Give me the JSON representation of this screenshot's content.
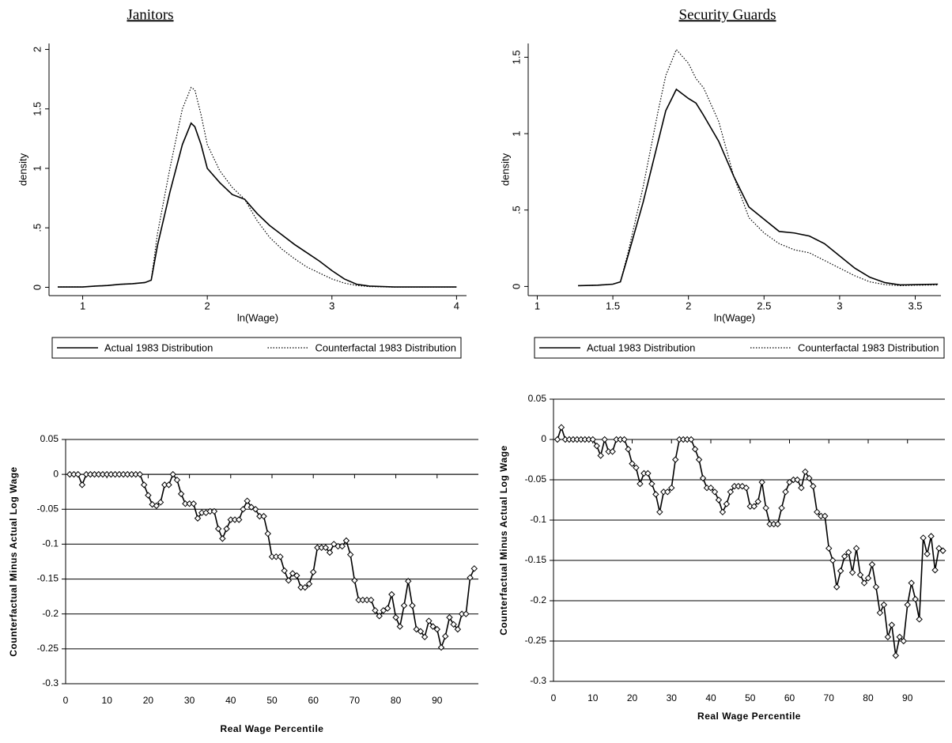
{
  "chart_data": [
    {
      "type": "line",
      "title": "Janitors",
      "xlabel": "ln(Wage)",
      "ylabel": "density",
      "x": [
        0.8,
        1.0,
        1.1,
        1.2,
        1.3,
        1.4,
        1.5,
        1.55,
        1.6,
        1.7,
        1.8,
        1.87,
        1.9,
        1.95,
        2.0,
        2.1,
        2.2,
        2.3,
        2.4,
        2.5,
        2.6,
        2.7,
        2.8,
        2.9,
        3.0,
        3.1,
        3.2,
        3.3,
        3.5,
        4.0
      ],
      "series": [
        {
          "name": "Actual 1983 Distribution",
          "color": "#000000",
          "style": "solid",
          "values": [
            0.003,
            0.003,
            0.01,
            0.015,
            0.025,
            0.03,
            0.04,
            0.06,
            0.35,
            0.8,
            1.2,
            1.38,
            1.35,
            1.2,
            1.0,
            0.88,
            0.78,
            0.74,
            0.62,
            0.52,
            0.44,
            0.36,
            0.29,
            0.22,
            0.14,
            0.07,
            0.025,
            0.01,
            0.003,
            0.003
          ]
        },
        {
          "name": "Counterfactal 1983 Distribution",
          "color": "#000000",
          "style": "dotted",
          "values": [
            0.003,
            0.003,
            0.01,
            0.015,
            0.025,
            0.03,
            0.04,
            0.06,
            0.45,
            1.0,
            1.5,
            1.68,
            1.66,
            1.45,
            1.2,
            0.98,
            0.84,
            0.74,
            0.56,
            0.42,
            0.32,
            0.24,
            0.17,
            0.12,
            0.07,
            0.035,
            0.015,
            0.006,
            0.002,
            0.002
          ]
        }
      ],
      "xlim": [
        0.73,
        4.08
      ],
      "ylim": [
        -0.07,
        2.05
      ],
      "xticks": [
        1,
        2,
        3,
        4
      ],
      "yticks": [
        0,
        {
          "value": 0.5,
          "label": ".5"
        },
        1,
        1.5,
        2
      ],
      "grid": false,
      "legend": "bottom"
    },
    {
      "type": "line",
      "title": "Security Guards",
      "xlabel": "ln(Wage)",
      "ylabel": "density",
      "x": [
        1.27,
        1.4,
        1.5,
        1.55,
        1.6,
        1.7,
        1.8,
        1.85,
        1.92,
        2.0,
        2.05,
        2.1,
        2.2,
        2.3,
        2.4,
        2.5,
        2.6,
        2.7,
        2.8,
        2.9,
        3.0,
        3.1,
        3.2,
        3.3,
        3.4,
        3.5,
        3.65
      ],
      "series": [
        {
          "name": "Actual 1983 Distribution",
          "color": "#000000",
          "style": "solid",
          "values": [
            0.005,
            0.008,
            0.015,
            0.03,
            0.2,
            0.55,
            0.95,
            1.15,
            1.29,
            1.23,
            1.2,
            1.12,
            0.95,
            0.72,
            0.52,
            0.44,
            0.36,
            0.35,
            0.33,
            0.28,
            0.2,
            0.12,
            0.06,
            0.025,
            0.01,
            0.012,
            0.015
          ]
        },
        {
          "name": "Counterfactal 1983 Distribution",
          "color": "#000000",
          "style": "dotted",
          "values": [
            0.005,
            0.008,
            0.015,
            0.03,
            0.22,
            0.65,
            1.15,
            1.38,
            1.55,
            1.46,
            1.36,
            1.3,
            1.08,
            0.72,
            0.45,
            0.35,
            0.28,
            0.24,
            0.22,
            0.17,
            0.12,
            0.07,
            0.03,
            0.012,
            0.005,
            0.008,
            0.01
          ]
        }
      ],
      "xlim": [
        0.94,
        3.67
      ],
      "ylim": [
        -0.06,
        1.59
      ],
      "xticks": [
        1,
        1.5,
        2,
        2.5,
        3,
        3.5
      ],
      "yticks": [
        0,
        {
          "value": 0.5,
          "label": ".5"
        },
        1,
        1.5
      ],
      "grid": false,
      "legend": "bottom"
    },
    {
      "type": "line",
      "xlabel": "Real Wage Percentile",
      "ylabel": "Counterfactual Minus Actual Log Wage",
      "x": [
        1,
        2,
        3,
        4,
        5,
        6,
        7,
        8,
        9,
        10,
        11,
        12,
        13,
        14,
        15,
        16,
        17,
        18,
        19,
        20,
        21,
        22,
        23,
        24,
        25,
        26,
        27,
        28,
        29,
        30,
        31,
        32,
        33,
        34,
        35,
        36,
        37,
        38,
        39,
        40,
        41,
        42,
        43,
        44,
        45,
        46,
        47,
        48,
        49,
        50,
        51,
        52,
        53,
        54,
        55,
        56,
        57,
        58,
        59,
        60,
        61,
        62,
        63,
        64,
        65,
        66,
        67,
        68,
        69,
        70,
        71,
        72,
        73,
        74,
        75,
        76,
        77,
        78,
        79,
        80,
        81,
        82,
        83,
        84,
        85,
        86,
        87,
        88,
        89,
        90,
        91,
        92,
        93,
        94,
        95,
        96,
        97,
        98,
        99
      ],
      "values": [
        0,
        0,
        0,
        -0.015,
        0,
        0,
        0,
        0,
        0,
        0,
        0,
        0,
        0,
        0,
        0,
        0,
        0,
        0,
        -0.015,
        -0.03,
        -0.043,
        -0.045,
        -0.04,
        -0.015,
        -0.015,
        0,
        -0.008,
        -0.028,
        -0.042,
        -0.042,
        -0.042,
        -0.063,
        -0.055,
        -0.055,
        -0.053,
        -0.053,
        -0.078,
        -0.092,
        -0.078,
        -0.065,
        -0.065,
        -0.065,
        -0.05,
        -0.038,
        -0.047,
        -0.05,
        -0.06,
        -0.06,
        -0.085,
        -0.118,
        -0.118,
        -0.118,
        -0.138,
        -0.152,
        -0.142,
        -0.145,
        -0.162,
        -0.162,
        -0.157,
        -0.14,
        -0.105,
        -0.105,
        -0.105,
        -0.112,
        -0.1,
        -0.103,
        -0.103,
        -0.095,
        -0.115,
        -0.152,
        -0.18,
        -0.18,
        -0.18,
        -0.18,
        -0.195,
        -0.203,
        -0.195,
        -0.192,
        -0.172,
        -0.205,
        -0.218,
        -0.188,
        -0.153,
        -0.188,
        -0.222,
        -0.225,
        -0.233,
        -0.21,
        -0.218,
        -0.222,
        -0.248,
        -0.232,
        -0.205,
        -0.215,
        -0.222,
        -0.2,
        -0.2,
        -0.148,
        -0.135
      ],
      "color": "#000000",
      "marker": "diamond",
      "xlim": [
        0,
        100
      ],
      "ylim": [
        -0.3,
        0.05
      ],
      "xticks": [
        0,
        10,
        20,
        30,
        40,
        50,
        60,
        70,
        80,
        90
      ],
      "yticks": [
        0.05,
        0,
        -0.05,
        -0.1,
        -0.15,
        -0.2,
        -0.25,
        -0.3
      ],
      "grid": true
    },
    {
      "type": "line",
      "xlabel": "Real Wage Percentile",
      "ylabel": "Counterfactual Minus Actual Log Wage",
      "x": [
        1,
        2,
        3,
        4,
        5,
        6,
        7,
        8,
        9,
        10,
        11,
        12,
        13,
        14,
        15,
        16,
        17,
        18,
        19,
        20,
        21,
        22,
        23,
        24,
        25,
        26,
        27,
        28,
        29,
        30,
        31,
        32,
        33,
        34,
        35,
        36,
        37,
        38,
        39,
        40,
        41,
        42,
        43,
        44,
        45,
        46,
        47,
        48,
        49,
        50,
        51,
        52,
        53,
        54,
        55,
        56,
        57,
        58,
        59,
        60,
        61,
        62,
        63,
        64,
        65,
        66,
        67,
        68,
        69,
        70,
        71,
        72,
        73,
        74,
        75,
        76,
        77,
        78,
        79,
        80,
        81,
        82,
        83,
        84,
        85,
        86,
        87,
        88,
        89,
        90,
        91,
        92,
        93,
        94,
        95,
        96,
        97,
        98,
        99
      ],
      "values": [
        0,
        0.015,
        0,
        0,
        0,
        0,
        0,
        0,
        0,
        0,
        -0.008,
        -0.02,
        0,
        -0.015,
        -0.015,
        0,
        0,
        0,
        -0.012,
        -0.03,
        -0.035,
        -0.055,
        -0.042,
        -0.042,
        -0.055,
        -0.068,
        -0.09,
        -0.065,
        -0.065,
        -0.06,
        -0.025,
        0,
        0,
        0,
        0,
        -0.012,
        -0.025,
        -0.048,
        -0.06,
        -0.06,
        -0.065,
        -0.075,
        -0.09,
        -0.08,
        -0.065,
        -0.058,
        -0.058,
        -0.058,
        -0.06,
        -0.083,
        -0.083,
        -0.077,
        -0.053,
        -0.085,
        -0.105,
        -0.105,
        -0.105,
        -0.085,
        -0.065,
        -0.053,
        -0.05,
        -0.05,
        -0.06,
        -0.04,
        -0.048,
        -0.058,
        -0.09,
        -0.095,
        -0.095,
        -0.135,
        -0.15,
        -0.183,
        -0.163,
        -0.145,
        -0.14,
        -0.165,
        -0.135,
        -0.168,
        -0.178,
        -0.172,
        -0.155,
        -0.183,
        -0.215,
        -0.205,
        -0.245,
        -0.23,
        -0.268,
        -0.245,
        -0.25,
        -0.205,
        -0.178,
        -0.198,
        -0.223,
        -0.122,
        -0.142,
        -0.12,
        -0.162,
        -0.135,
        -0.138
      ],
      "color": "#000000",
      "marker": "diamond",
      "xlim": [
        0,
        99.5
      ],
      "ylim": [
        -0.3,
        0.05
      ],
      "xticks": [
        0,
        10,
        20,
        30,
        40,
        50,
        60,
        70,
        80,
        90
      ],
      "yticks": [
        0.05,
        0,
        -0.05,
        -0.1,
        -0.15,
        -0.2,
        -0.25,
        -0.3
      ],
      "grid": true
    }
  ]
}
